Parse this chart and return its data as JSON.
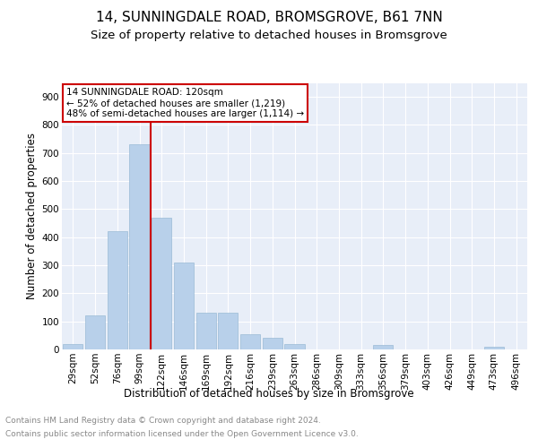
{
  "title": "14, SUNNINGDALE ROAD, BROMSGROVE, B61 7NN",
  "subtitle": "Size of property relative to detached houses in Bromsgrove",
  "xlabel": "Distribution of detached houses by size in Bromsgrove",
  "ylabel": "Number of detached properties",
  "categories": [
    "29sqm",
    "52sqm",
    "76sqm",
    "99sqm",
    "122sqm",
    "146sqm",
    "169sqm",
    "192sqm",
    "216sqm",
    "239sqm",
    "263sqm",
    "286sqm",
    "309sqm",
    "333sqm",
    "356sqm",
    "379sqm",
    "403sqm",
    "426sqm",
    "449sqm",
    "473sqm",
    "496sqm"
  ],
  "values": [
    20,
    120,
    420,
    730,
    470,
    310,
    130,
    130,
    55,
    40,
    20,
    0,
    0,
    0,
    15,
    0,
    0,
    0,
    0,
    10,
    0
  ],
  "bar_color": "#b8d0ea",
  "bar_edge_color": "#9bbbd6",
  "vline_color": "#cc0000",
  "vline_x_index": 4,
  "annotation_text": "14 SUNNINGDALE ROAD: 120sqm\n← 52% of detached houses are smaller (1,219)\n48% of semi-detached houses are larger (1,114) →",
  "annotation_box_facecolor": "#ffffff",
  "annotation_box_edgecolor": "#cc0000",
  "ylim": [
    0,
    950
  ],
  "yticks": [
    0,
    100,
    200,
    300,
    400,
    500,
    600,
    700,
    800,
    900
  ],
  "plot_bg_color": "#e8eef8",
  "grid_color": "#ffffff",
  "title_fontsize": 11,
  "subtitle_fontsize": 9.5,
  "axis_label_fontsize": 8.5,
  "tick_fontsize": 7.5,
  "annotation_fontsize": 7.5,
  "footer_fontsize": 6.5,
  "footer_line1": "Contains HM Land Registry data © Crown copyright and database right 2024.",
  "footer_line2": "Contains public sector information licensed under the Open Government Licence v3.0."
}
